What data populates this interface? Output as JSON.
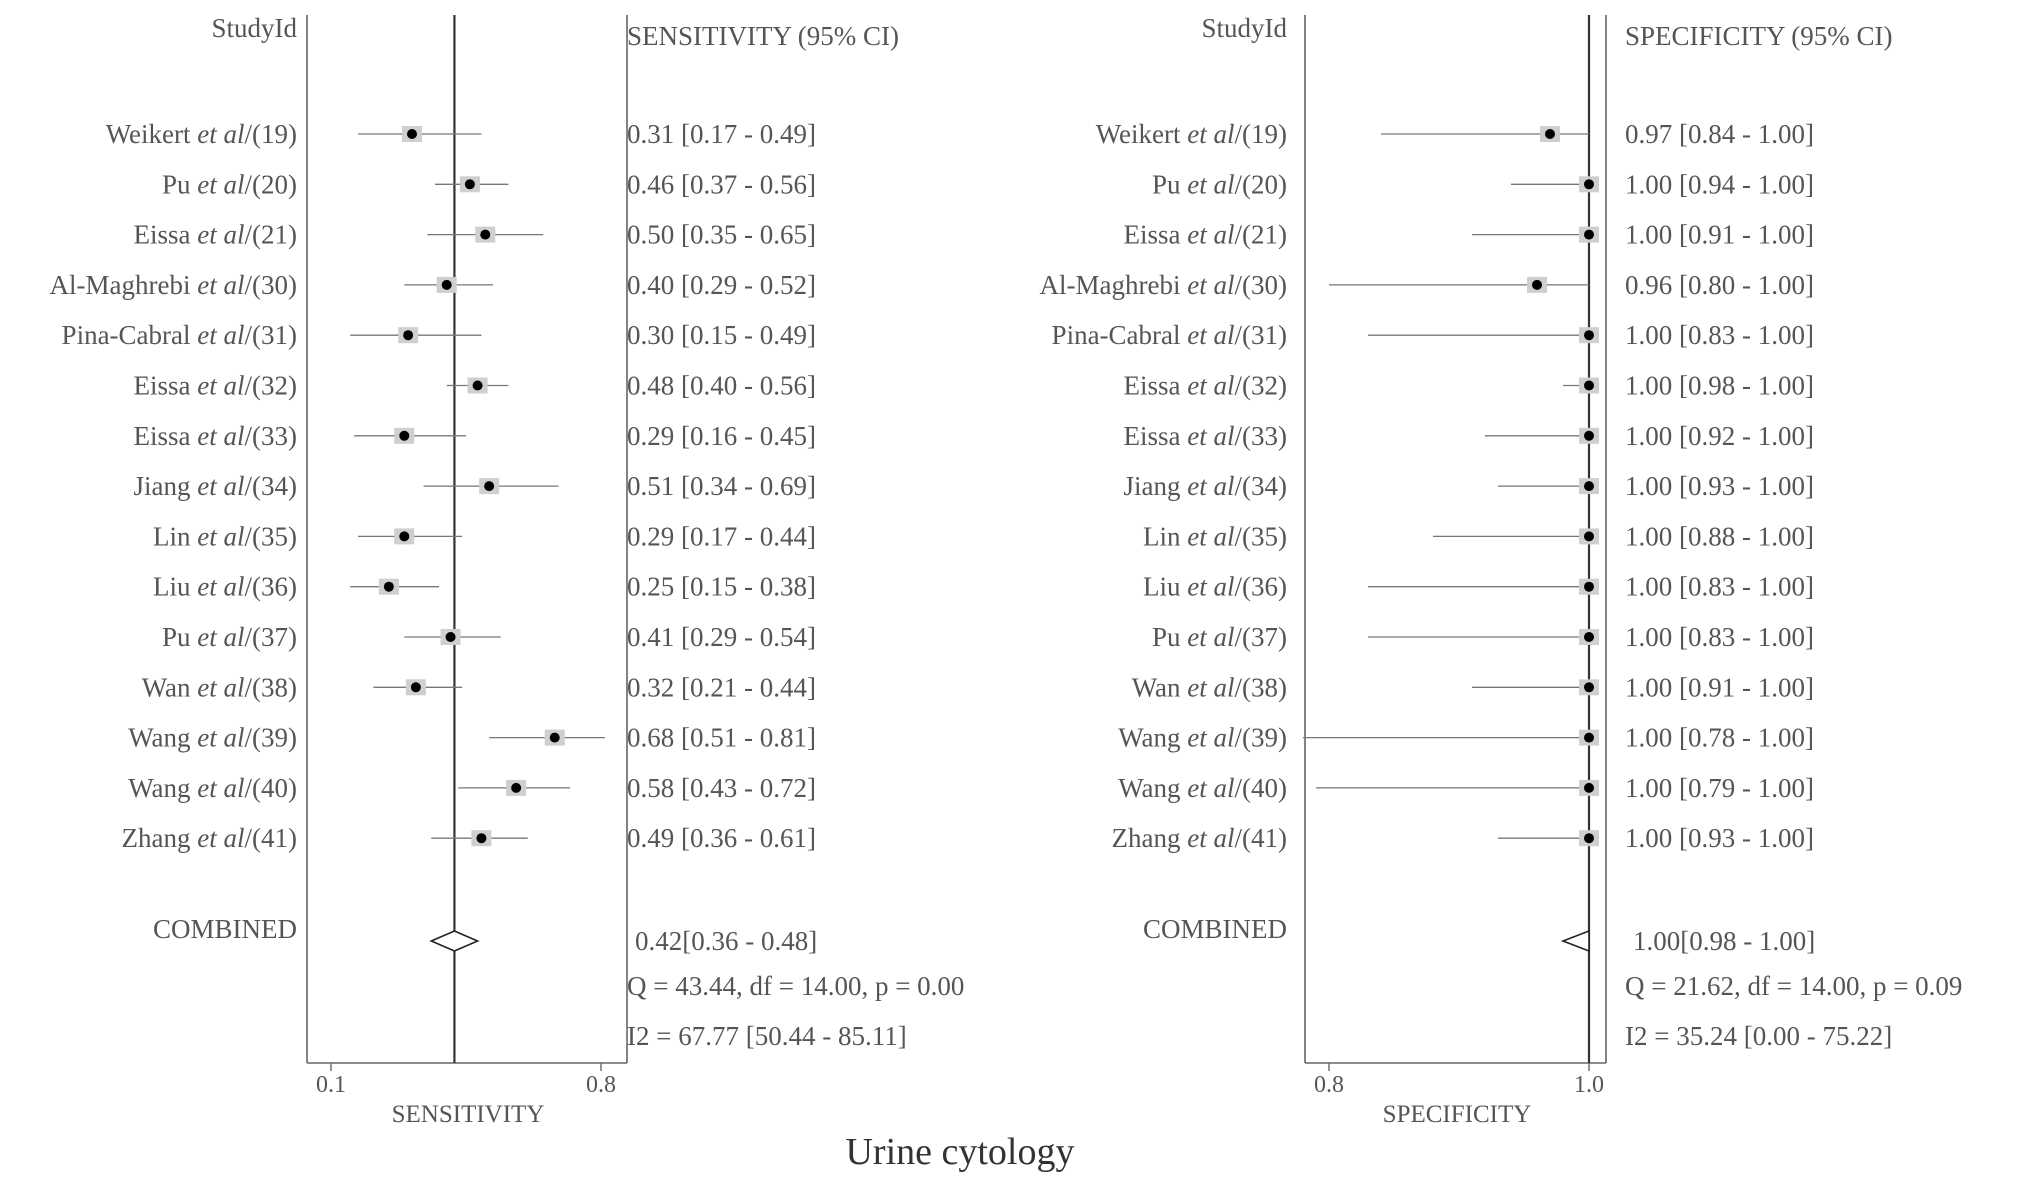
{
  "figure_title": "Urine cytology",
  "chart_data": [
    {
      "type": "forest",
      "study_header": "StudyId",
      "ci_header": "SENSITIVITY (95% CI)",
      "xlabel": "SENSITIVITY",
      "xticks": [
        "0.1",
        "0.8"
      ],
      "xlim": [
        0.1,
        0.8
      ],
      "pooled_line": 0.42,
      "studies": [
        {
          "author": "Weikert",
          "etal": "et al",
          "ref": "/(19)",
          "est": 0.31,
          "lo": 0.17,
          "hi": 0.49,
          "ci_text": "0.31 [0.17 - 0.49]"
        },
        {
          "author": "Pu",
          "etal": "et al",
          "ref": "/(20)",
          "est": 0.46,
          "lo": 0.37,
          "hi": 0.56,
          "ci_text": "0.46 [0.37 - 0.56]"
        },
        {
          "author": "Eissa",
          "etal": "et al",
          "ref": "/(21)",
          "est": 0.5,
          "lo": 0.35,
          "hi": 0.65,
          "ci_text": "0.50 [0.35 - 0.65]"
        },
        {
          "author": "Al-Maghrebi",
          "etal": "et al",
          "ref": "/(30)",
          "est": 0.4,
          "lo": 0.29,
          "hi": 0.52,
          "ci_text": "0.40 [0.29 - 0.52]"
        },
        {
          "author": "Pina-Cabral",
          "etal": "et al",
          "ref": "/(31)",
          "est": 0.3,
          "lo": 0.15,
          "hi": 0.49,
          "ci_text": "0.30 [0.15 - 0.49]"
        },
        {
          "author": "Eissa",
          "etal": "et al",
          "ref": "/(32)",
          "est": 0.48,
          "lo": 0.4,
          "hi": 0.56,
          "ci_text": "0.48 [0.40 - 0.56]"
        },
        {
          "author": "Eissa",
          "etal": "et al",
          "ref": "/(33)",
          "est": 0.29,
          "lo": 0.16,
          "hi": 0.45,
          "ci_text": "0.29 [0.16 - 0.45]"
        },
        {
          "author": "Jiang",
          "etal": "et al",
          "ref": "/(34)",
          "est": 0.51,
          "lo": 0.34,
          "hi": 0.69,
          "ci_text": "0.51 [0.34 - 0.69]"
        },
        {
          "author": "Lin",
          "etal": "et al",
          "ref": "/(35)",
          "est": 0.29,
          "lo": 0.17,
          "hi": 0.44,
          "ci_text": "0.29 [0.17 - 0.44]"
        },
        {
          "author": "Liu",
          "etal": "et al",
          "ref": "/(36)",
          "est": 0.25,
          "lo": 0.15,
          "hi": 0.38,
          "ci_text": "0.25 [0.15 - 0.38]"
        },
        {
          "author": "Pu",
          "etal": "et al",
          "ref": "/(37)",
          "est": 0.41,
          "lo": 0.29,
          "hi": 0.54,
          "ci_text": "0.41 [0.29 - 0.54]"
        },
        {
          "author": "Wan",
          "etal": "et al",
          "ref": "/(38)",
          "est": 0.32,
          "lo": 0.21,
          "hi": 0.44,
          "ci_text": "0.32 [0.21 - 0.44]"
        },
        {
          "author": "Wang",
          "etal": "et al",
          "ref": "/(39)",
          "est": 0.68,
          "lo": 0.51,
          "hi": 0.81,
          "ci_text": "0.68 [0.51 - 0.81]"
        },
        {
          "author": "Wang",
          "etal": "et al",
          "ref": "/(40)",
          "est": 0.58,
          "lo": 0.43,
          "hi": 0.72,
          "ci_text": "0.58 [0.43 - 0.72]"
        },
        {
          "author": "Zhang",
          "etal": "et al",
          "ref": "/(41)",
          "est": 0.49,
          "lo": 0.36,
          "hi": 0.61,
          "ci_text": "0.49 [0.36 - 0.61]"
        }
      ],
      "combined": {
        "label": "COMBINED",
        "est": 0.42,
        "lo": 0.36,
        "hi": 0.48,
        "ci_text": "0.42[0.36 - 0.48]"
      },
      "q_text": "Q = 43.44, df = 14.00, p =  0.00",
      "i2_text": "I2 = 67.77 [50.44 - 85.11]"
    },
    {
      "type": "forest",
      "study_header": "StudyId",
      "ci_header": "SPECIFICITY (95% CI)",
      "xlabel": "SPECIFICITY",
      "xticks": [
        "0.8",
        "1.0"
      ],
      "xlim": [
        0.8,
        1.0
      ],
      "pooled_line": 1.0,
      "studies": [
        {
          "author": "Weikert",
          "etal": "et al",
          "ref": "/(19)",
          "est": 0.97,
          "lo": 0.84,
          "hi": 1.0,
          "ci_text": "0.97 [0.84 - 1.00]"
        },
        {
          "author": "Pu",
          "etal": "et al",
          "ref": "/(20)",
          "est": 1.0,
          "lo": 0.94,
          "hi": 1.0,
          "ci_text": "1.00 [0.94 - 1.00]"
        },
        {
          "author": "Eissa",
          "etal": "et al",
          "ref": "/(21)",
          "est": 1.0,
          "lo": 0.91,
          "hi": 1.0,
          "ci_text": "1.00 [0.91 - 1.00]"
        },
        {
          "author": "Al-Maghrebi",
          "etal": "et al",
          "ref": "/(30)",
          "est": 0.96,
          "lo": 0.8,
          "hi": 1.0,
          "ci_text": "0.96 [0.80 - 1.00]"
        },
        {
          "author": "Pina-Cabral",
          "etal": "et al",
          "ref": "/(31)",
          "est": 1.0,
          "lo": 0.83,
          "hi": 1.0,
          "ci_text": "1.00 [0.83 - 1.00]"
        },
        {
          "author": "Eissa",
          "etal": "et al",
          "ref": "/(32)",
          "est": 1.0,
          "lo": 0.98,
          "hi": 1.0,
          "ci_text": "1.00 [0.98 - 1.00]"
        },
        {
          "author": "Eissa",
          "etal": "et al",
          "ref": "/(33)",
          "est": 1.0,
          "lo": 0.92,
          "hi": 1.0,
          "ci_text": "1.00 [0.92 - 1.00]"
        },
        {
          "author": "Jiang",
          "etal": "et al",
          "ref": "/(34)",
          "est": 1.0,
          "lo": 0.93,
          "hi": 1.0,
          "ci_text": "1.00 [0.93 - 1.00]"
        },
        {
          "author": "Lin",
          "etal": "et al",
          "ref": "/(35)",
          "est": 1.0,
          "lo": 0.88,
          "hi": 1.0,
          "ci_text": "1.00 [0.88 - 1.00]"
        },
        {
          "author": "Liu",
          "etal": "et al",
          "ref": "/(36)",
          "est": 1.0,
          "lo": 0.83,
          "hi": 1.0,
          "ci_text": "1.00 [0.83 - 1.00]"
        },
        {
          "author": "Pu",
          "etal": "et al",
          "ref": "/(37)",
          "est": 1.0,
          "lo": 0.83,
          "hi": 1.0,
          "ci_text": "1.00 [0.83 - 1.00]"
        },
        {
          "author": "Wan",
          "etal": "et al",
          "ref": "/(38)",
          "est": 1.0,
          "lo": 0.91,
          "hi": 1.0,
          "ci_text": "1.00 [0.91 - 1.00]"
        },
        {
          "author": "Wang",
          "etal": "et al",
          "ref": "/(39)",
          "est": 1.0,
          "lo": 0.78,
          "hi": 1.0,
          "ci_text": "1.00 [0.78 - 1.00]"
        },
        {
          "author": "Wang",
          "etal": "et al",
          "ref": "/(40)",
          "est": 1.0,
          "lo": 0.79,
          "hi": 1.0,
          "ci_text": "1.00 [0.79 - 1.00]"
        },
        {
          "author": "Zhang",
          "etal": "et al",
          "ref": "/(41)",
          "est": 1.0,
          "lo": 0.93,
          "hi": 1.0,
          "ci_text": "1.00 [0.93 - 1.00]"
        }
      ],
      "combined": {
        "label": "COMBINED",
        "est": 1.0,
        "lo": 0.98,
        "hi": 1.0,
        "ci_text": "1.00[0.98 - 1.00]"
      },
      "q_text": "Q = 21.62, df = 14.00, p =  0.09",
      "i2_text": "I2 = 35.24 [0.00 - 75.22]"
    }
  ]
}
